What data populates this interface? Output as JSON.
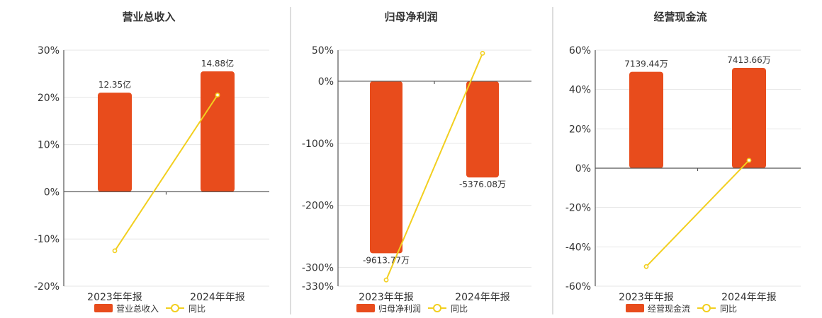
{
  "colors": {
    "bar": "#e84c1c",
    "line": "#f2cf1f"
  },
  "chart_data": [
    {
      "type": "bar",
      "title": "营业总收入",
      "categories": [
        "2023年年报",
        "2024年年报"
      ],
      "series": [
        {
          "name": "营业总收入",
          "values": [
            21.0,
            25.5
          ],
          "labels": [
            "12.35亿",
            "14.88亿"
          ]
        },
        {
          "name": "同比",
          "type": "line",
          "values": [
            -12.5,
            20.5
          ]
        }
      ],
      "ylim": [
        -20,
        30
      ],
      "yticks": [
        30,
        20,
        10,
        0,
        -10,
        -20
      ],
      "ytick_labels": [
        "30%",
        "20%",
        "10%",
        "0%",
        "-10%",
        "-20%"
      ],
      "legend": [
        "营业总收入",
        "同比"
      ]
    },
    {
      "type": "bar",
      "title": "归母净利润",
      "categories": [
        "2023年年报",
        "2024年年报"
      ],
      "series": [
        {
          "name": "归母净利润",
          "values": [
            -277,
            -155
          ],
          "labels": [
            "-9613.77万",
            "-5376.08万"
          ]
        },
        {
          "name": "同比",
          "type": "line",
          "values": [
            -320,
            45
          ]
        }
      ],
      "ylim": [
        -330,
        50
      ],
      "yticks": [
        50,
        0,
        -100,
        -200,
        -300,
        -330
      ],
      "ytick_labels": [
        "50%",
        "0%",
        "-100%",
        "-200%",
        "-300%",
        "-330%"
      ],
      "legend": [
        "归母净利润",
        "同比"
      ]
    },
    {
      "type": "bar",
      "title": "经营现金流",
      "categories": [
        "2023年年报",
        "2024年年报"
      ],
      "series": [
        {
          "name": "经营现金流",
          "values": [
            49,
            51
          ],
          "labels": [
            "7139.44万",
            "7413.66万"
          ]
        },
        {
          "name": "同比",
          "type": "line",
          "values": [
            -50,
            4
          ]
        }
      ],
      "ylim": [
        -60,
        60
      ],
      "yticks": [
        60,
        40,
        20,
        0,
        -20,
        -40,
        -60
      ],
      "ytick_labels": [
        "60%",
        "40%",
        "20%",
        "0%",
        "-20%",
        "-40%",
        "-60%"
      ],
      "legend": [
        "经营现金流",
        "同比"
      ]
    }
  ]
}
